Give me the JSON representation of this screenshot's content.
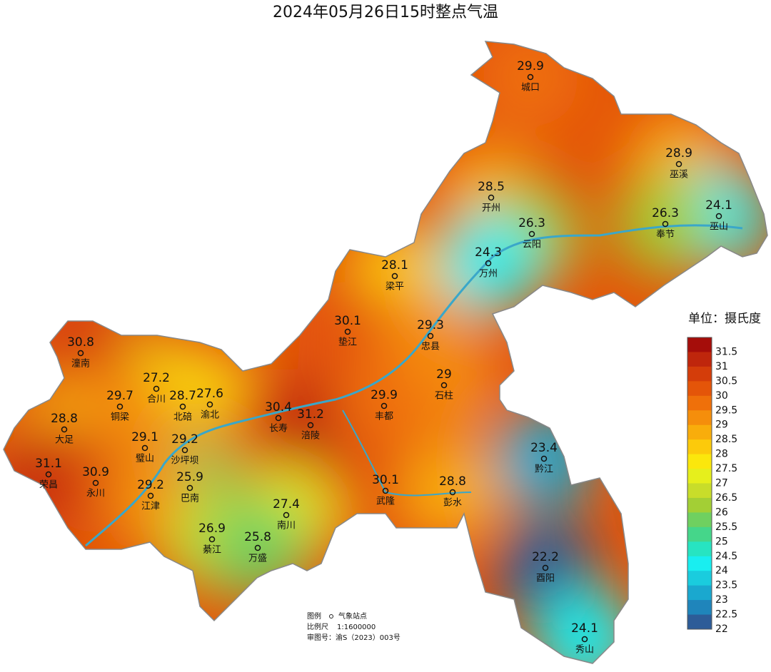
{
  "title": "2024年05月26日15时整点气温",
  "stations": [
    {
      "name": "城口",
      "value": 29.9
    },
    {
      "name": "巫溪",
      "value": 28.9
    },
    {
      "name": "开州",
      "value": 28.5
    },
    {
      "name": "巫山",
      "value": 24.1
    },
    {
      "name": "奉节",
      "value": 26.3
    },
    {
      "name": "云阳",
      "value": 26.3
    },
    {
      "name": "万州",
      "value": 24.3
    },
    {
      "name": "梁平",
      "value": 28.1
    },
    {
      "name": "垫江",
      "value": 30.1
    },
    {
      "name": "忠县",
      "value": 29.3
    },
    {
      "name": "潼南",
      "value": 30.8
    },
    {
      "name": "石柱",
      "value": 29
    },
    {
      "name": "合川",
      "value": 27.2
    },
    {
      "name": "铜梁",
      "value": 29.7
    },
    {
      "name": "北碚",
      "value": 28.7
    },
    {
      "name": "渝北",
      "value": 27.6
    },
    {
      "name": "长寿",
      "value": 30.4
    },
    {
      "name": "涪陵",
      "value": 31.2
    },
    {
      "name": "丰都",
      "value": 29.9
    },
    {
      "name": "大足",
      "value": 28.8
    },
    {
      "name": "璧山",
      "value": 29.1
    },
    {
      "name": "沙坪坝",
      "value": 29.2
    },
    {
      "name": "荣昌",
      "value": 31.1
    },
    {
      "name": "永川",
      "value": 30.9
    },
    {
      "name": "巴南",
      "value": 25.9
    },
    {
      "name": "江津",
      "value": 29.2
    },
    {
      "name": "武隆",
      "value": 30.1
    },
    {
      "name": "彭水",
      "value": 28.8
    },
    {
      "name": "南川",
      "value": 27.4
    },
    {
      "name": "綦江",
      "value": 26.9
    },
    {
      "name": "万盛",
      "value": 25.8
    },
    {
      "name": "黔江",
      "value": 23.4
    },
    {
      "name": "酉阳",
      "value": 22.2
    },
    {
      "name": "秀山",
      "value": 24.1
    }
  ],
  "legend": {
    "title": "单位：摄氏度",
    "items": [
      {
        "value": 31.5,
        "color": "#a50d0a"
      },
      {
        "value": 31,
        "color": "#bf260c"
      },
      {
        "value": 30.5,
        "color": "#d43d0a"
      },
      {
        "value": 30,
        "color": "#e45509"
      },
      {
        "value": 29.5,
        "color": "#ef700a"
      },
      {
        "value": 29,
        "color": "#f58e0b"
      },
      {
        "value": 28.5,
        "color": "#f9ad0b"
      },
      {
        "value": 28,
        "color": "#fcca0b"
      },
      {
        "value": 27.5,
        "color": "#fbe70c"
      },
      {
        "value": 27,
        "color": "#e6ef1c"
      },
      {
        "value": 26.5,
        "color": "#c8dd2a"
      },
      {
        "value": 26,
        "color": "#a3cf35"
      },
      {
        "value": 25.5,
        "color": "#6fd060"
      },
      {
        "value": 25,
        "color": "#45d68a"
      },
      {
        "value": 24.5,
        "color": "#27e4c1"
      },
      {
        "value": 24,
        "color": "#19eef0"
      },
      {
        "value": 23.5,
        "color": "#1accde"
      },
      {
        "value": 23,
        "color": "#1aa8cf"
      },
      {
        "value": 22.5,
        "color": "#1f85bb"
      },
      {
        "value": 22,
        "color": "#2d5c98"
      }
    ]
  },
  "footer": {
    "legend_label": "图例",
    "legend_item": "气象站点",
    "scale_label": "比例尺",
    "scale": "1:1600000",
    "approval": "审图号：渝S（2023）003号"
  }
}
